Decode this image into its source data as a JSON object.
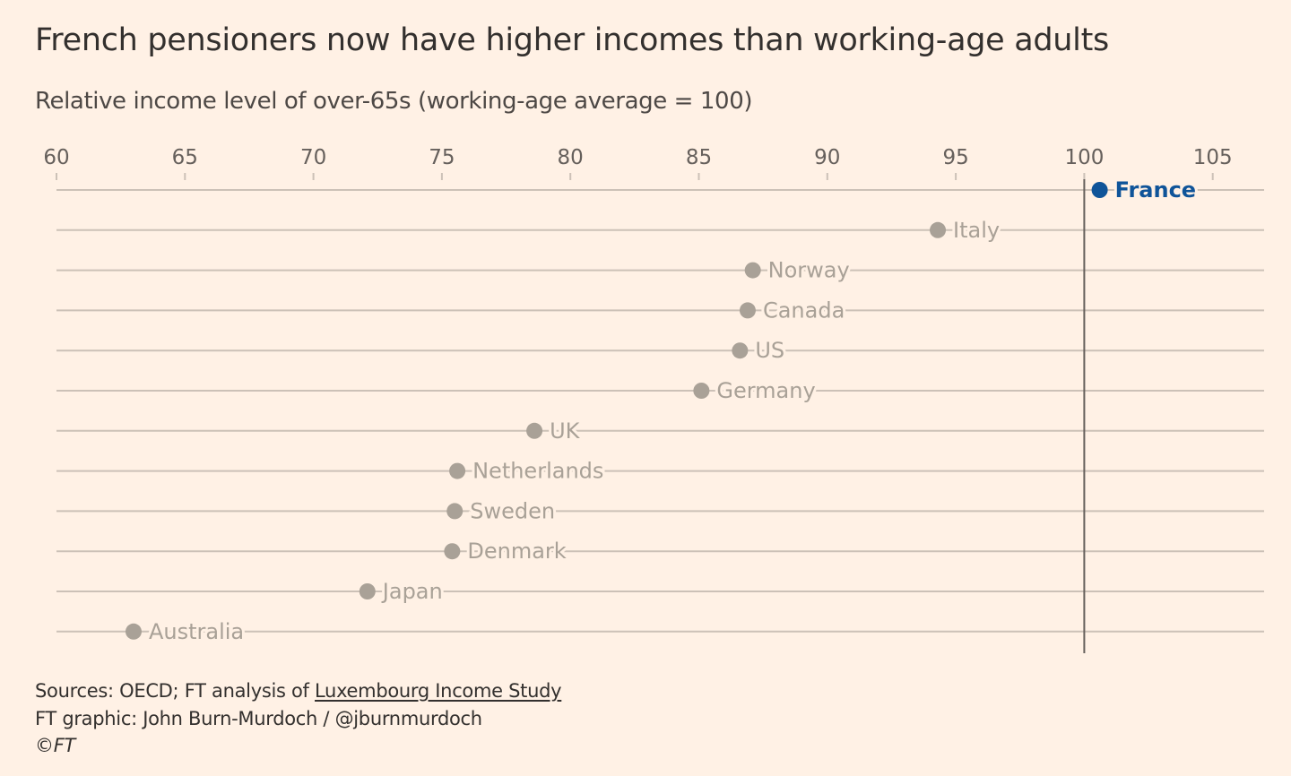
{
  "colors": {
    "background": "#fff1e5",
    "highlight": "#0f5499",
    "muted": "#a9a197",
    "gridline": "#ccc1b7",
    "reference_line": "#66605c",
    "tick_text": "#66605c"
  },
  "header": {
    "title": "French pensioners now have higher incomes than working-age adults",
    "subtitle": "Relative income level of over-65s (working-age average = 100)"
  },
  "chart_data": {
    "type": "dot",
    "title": "French pensioners now have higher incomes than working-age adults",
    "subtitle": "Relative income level of over-65s (working-age average = 100)",
    "xlim": [
      60,
      107
    ],
    "xticks": [
      60,
      65,
      70,
      75,
      80,
      85,
      90,
      95,
      100,
      105
    ],
    "reference_value": 100,
    "highlight": "France",
    "points": [
      {
        "country": "France",
        "value": 100.6
      },
      {
        "country": "Italy",
        "value": 94.3
      },
      {
        "country": "Norway",
        "value": 87.1
      },
      {
        "country": "Canada",
        "value": 86.9
      },
      {
        "country": "US",
        "value": 86.6
      },
      {
        "country": "Germany",
        "value": 85.1
      },
      {
        "country": "UK",
        "value": 78.6
      },
      {
        "country": "Netherlands",
        "value": 75.6
      },
      {
        "country": "Sweden",
        "value": 75.5
      },
      {
        "country": "Denmark",
        "value": 75.4
      },
      {
        "country": "Japan",
        "value": 72.1
      },
      {
        "country": "Australia",
        "value": 63.0
      }
    ]
  },
  "footer": {
    "sources_prefix": "Sources: OECD; FT analysis of ",
    "sources_link": "Luxembourg Income Study",
    "graphic_credit": "FT graphic: John Burn-Murdoch / @jburnmurdoch",
    "copyright": "©FT"
  }
}
